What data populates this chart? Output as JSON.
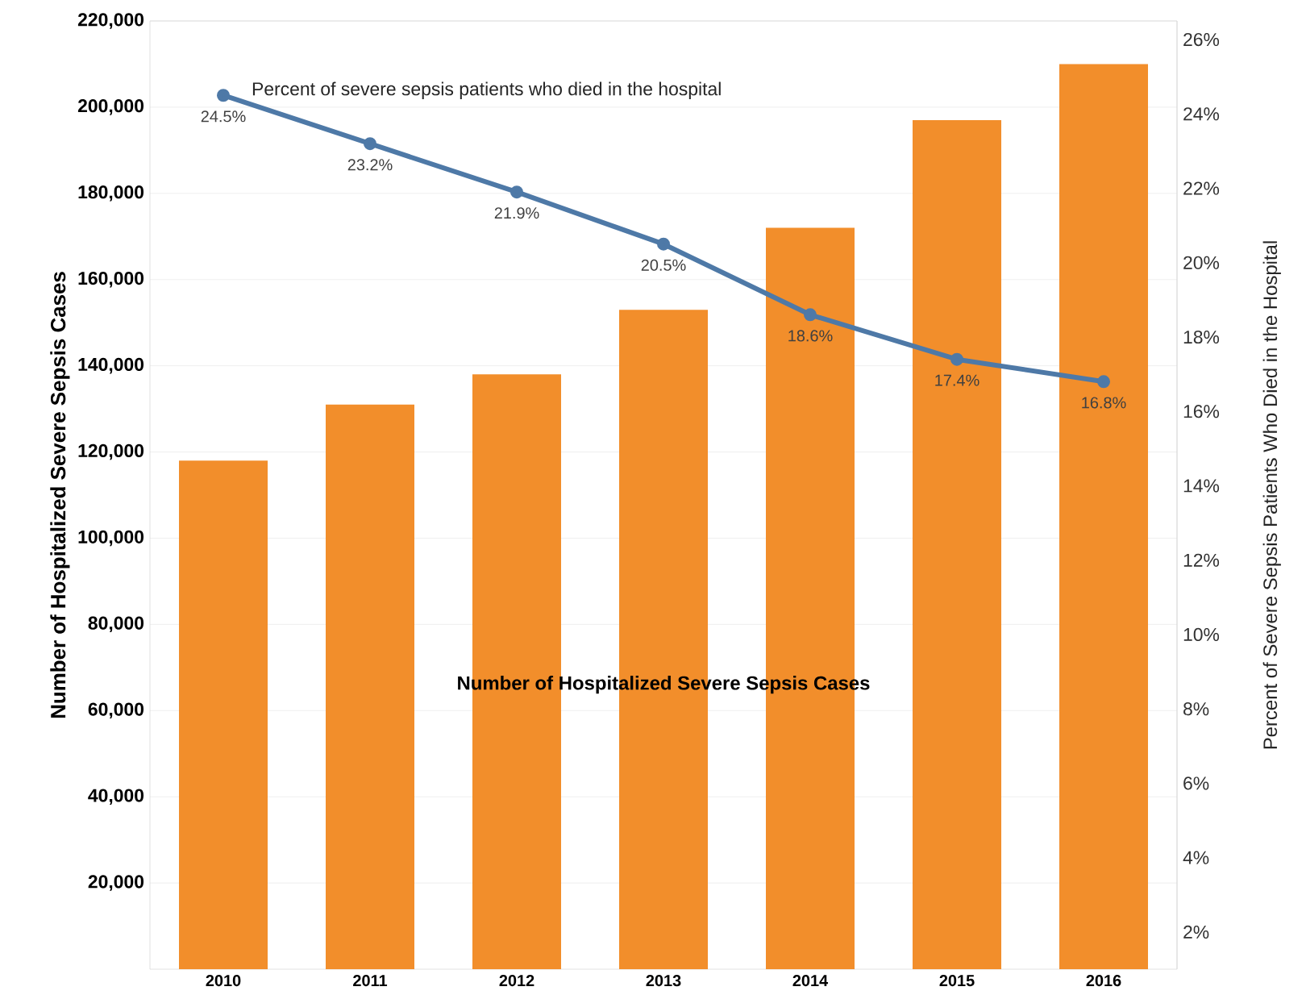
{
  "chart_data": {
    "type": "bar",
    "categories": [
      "2010",
      "2011",
      "2012",
      "2013",
      "2014",
      "2015",
      "2016"
    ],
    "ylabel": "Number of Hospitalized Severe Sepsis Cases",
    "y2label": "Percent of Severe Sepsis Patients Who Died in the Hospital",
    "ylim": [
      0,
      220000
    ],
    "yticks": [
      {
        "value": 20000,
        "label": "20,000"
      },
      {
        "value": 40000,
        "label": "40,000"
      },
      {
        "value": 60000,
        "label": "60,000"
      },
      {
        "value": 80000,
        "label": "80,000"
      },
      {
        "value": 100000,
        "label": "100,000"
      },
      {
        "value": 120000,
        "label": "120,000"
      },
      {
        "value": 140000,
        "label": "140,000"
      },
      {
        "value": 160000,
        "label": "160,000"
      },
      {
        "value": 180000,
        "label": "180,000"
      },
      {
        "value": 200000,
        "label": "200,000"
      },
      {
        "value": 220000,
        "label": "220,000"
      }
    ],
    "y2lim": [
      1,
      26.5
    ],
    "y2ticks": [
      {
        "value": 2,
        "label": "2%"
      },
      {
        "value": 4,
        "label": "4%"
      },
      {
        "value": 6,
        "label": "6%"
      },
      {
        "value": 8,
        "label": "8%"
      },
      {
        "value": 10,
        "label": "10%"
      },
      {
        "value": 12,
        "label": "12%"
      },
      {
        "value": 14,
        "label": "14%"
      },
      {
        "value": 16,
        "label": "16%"
      },
      {
        "value": 18,
        "label": "18%"
      },
      {
        "value": 20,
        "label": "20%"
      },
      {
        "value": 22,
        "label": "22%"
      },
      {
        "value": 24,
        "label": "24%"
      },
      {
        "value": 26,
        "label": "26%"
      }
    ],
    "grid": "y",
    "marker": "circle",
    "series": [
      {
        "name": "Number of Hospitalized Severe Sepsis Cases",
        "color": "#f28e2b",
        "values": [
          118000,
          131000,
          138000,
          153000,
          172000,
          197000,
          210000
        ]
      },
      {
        "name": "Percent of severe sepsis patients who died in the hospital",
        "type": "line",
        "axis": "y2",
        "color": "#4e79a7",
        "values": [
          24.5,
          23.2,
          21.9,
          20.5,
          18.6,
          17.4,
          16.8
        ],
        "value_labels": [
          "24.5%",
          "23.2%",
          "21.9%",
          "20.5%",
          "18.6%",
          "17.4%",
          "16.8%"
        ]
      }
    ]
  }
}
